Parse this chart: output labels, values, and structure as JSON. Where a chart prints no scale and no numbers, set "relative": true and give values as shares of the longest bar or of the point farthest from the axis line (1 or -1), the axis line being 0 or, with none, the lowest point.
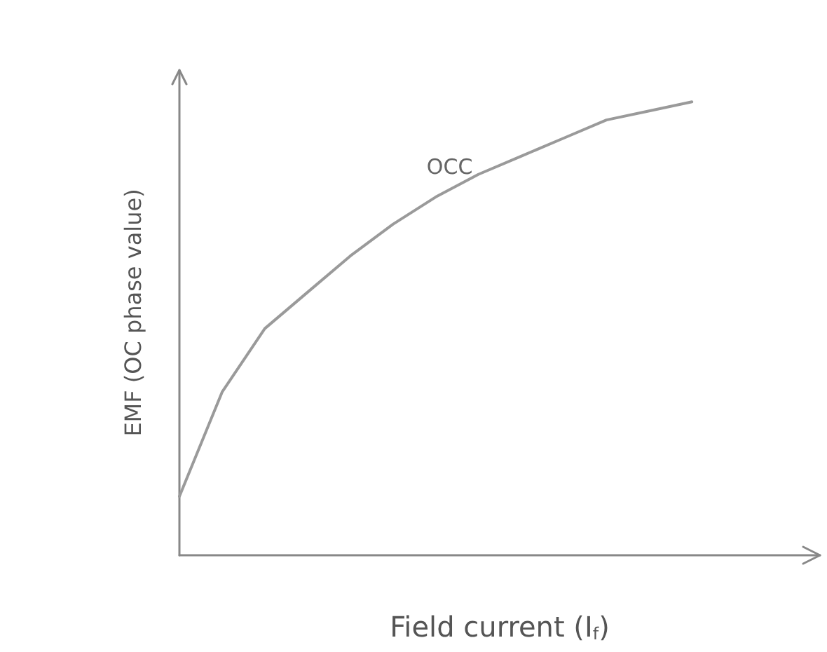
{
  "chart_data": {
    "type": "line",
    "relative": true,
    "xlabel": "Field current (I$_{f}$)",
    "ylabel": "EMF (OC phase value)",
    "categories": [
      null,
      null,
      null,
      null,
      null,
      null,
      null,
      null,
      null,
      null,
      null,
      null,
      null,
      null,
      null,
      null
    ],
    "series": [
      {
        "name": "OCC",
        "color": "#9a9a9a",
        "values": [
          0.13,
          0.36,
          0.5,
          0.58,
          0.66,
          0.73,
          0.79,
          0.84,
          0.88,
          0.92,
          0.96,
          0.98,
          1,
          null,
          null,
          null
        ]
      }
    ],
    "marker": "none",
    "line_style": "solid",
    "grid": false,
    "legend": false
  }
}
